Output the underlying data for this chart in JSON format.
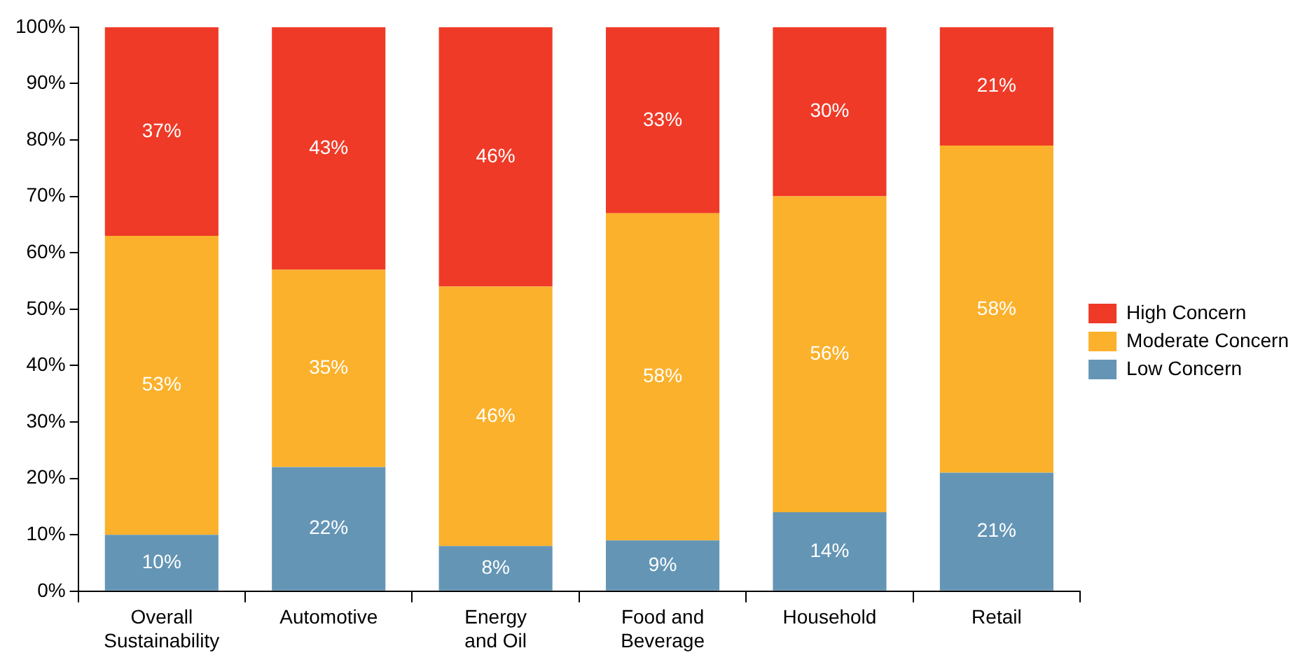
{
  "chart_data": {
    "type": "bar",
    "stacked": true,
    "categories": [
      "Overall Sustainability",
      "Automotive",
      "Energy and Oil",
      "Food and Beverage",
      "Household",
      "Retail"
    ],
    "series": [
      {
        "name": "Low Concern",
        "color": "#6495b5",
        "values": [
          10,
          22,
          8,
          9,
          14,
          21
        ],
        "value_labels": [
          "10%",
          "22%",
          "8%",
          "9%",
          "14%",
          "21%"
        ]
      },
      {
        "name": "Moderate Concern",
        "color": "#fbb12b",
        "values": [
          53,
          35,
          46,
          58,
          56,
          58
        ],
        "value_labels": [
          "53%",
          "35%",
          "46%",
          "58%",
          "56%",
          "58%"
        ]
      },
      {
        "name": "High Concern",
        "color": "#ef3a27",
        "values": [
          37,
          43,
          46,
          33,
          30,
          21
        ],
        "value_labels": [
          "37%",
          "43%",
          "46%",
          "33%",
          "30%",
          "21%"
        ]
      }
    ],
    "ylim": [
      0,
      100
    ],
    "yticks": [
      {
        "value": 0,
        "label": "0%"
      },
      {
        "value": 10,
        "label": "10%"
      },
      {
        "value": 20,
        "label": "20%"
      },
      {
        "value": 30,
        "label": "30%"
      },
      {
        "value": 40,
        "label": "40%"
      },
      {
        "value": 50,
        "label": "50%"
      },
      {
        "value": 60,
        "label": "60%"
      },
      {
        "value": 70,
        "label": "70%"
      },
      {
        "value": 80,
        "label": "80%"
      },
      {
        "value": 90,
        "label": "90%"
      },
      {
        "value": 100,
        "label": "100%"
      }
    ],
    "grid": false,
    "legend": "right"
  }
}
